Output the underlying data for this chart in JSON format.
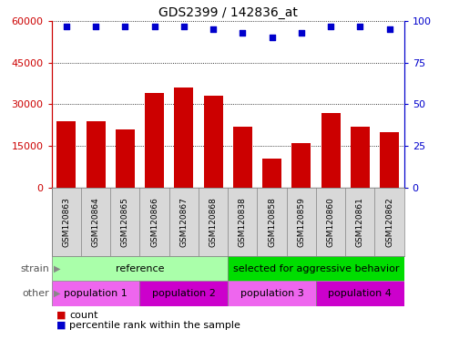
{
  "title": "GDS2399 / 142836_at",
  "samples": [
    "GSM120863",
    "GSM120864",
    "GSM120865",
    "GSM120866",
    "GSM120867",
    "GSM120868",
    "GSM120838",
    "GSM120858",
    "GSM120859",
    "GSM120860",
    "GSM120861",
    "GSM120862"
  ],
  "counts": [
    24000,
    24000,
    21000,
    34000,
    36000,
    33000,
    22000,
    10500,
    16000,
    27000,
    22000,
    20000
  ],
  "percentile_ranks": [
    97,
    97,
    97,
    97,
    97,
    95,
    93,
    90,
    93,
    97,
    97,
    95
  ],
  "ylim_left": [
    0,
    60000
  ],
  "ylim_right": [
    0,
    100
  ],
  "yticks_left": [
    0,
    15000,
    30000,
    45000,
    60000
  ],
  "yticks_right": [
    0,
    25,
    50,
    75,
    100
  ],
  "bar_color": "#cc0000",
  "dot_color": "#0000cc",
  "strain_groups": [
    {
      "label": "reference",
      "start": 0,
      "end": 6,
      "color": "#aaffaa"
    },
    {
      "label": "selected for aggressive behavior",
      "start": 6,
      "end": 12,
      "color": "#00dd00"
    }
  ],
  "other_groups": [
    {
      "label": "population 1",
      "start": 0,
      "end": 3,
      "color": "#ee66ee"
    },
    {
      "label": "population 2",
      "start": 3,
      "end": 6,
      "color": "#cc00cc"
    },
    {
      "label": "population 3",
      "start": 6,
      "end": 9,
      "color": "#ee66ee"
    },
    {
      "label": "population 4",
      "start": 9,
      "end": 12,
      "color": "#cc00cc"
    }
  ],
  "strain_label": "strain",
  "other_label": "other",
  "legend_count_label": "count",
  "legend_percentile_label": "percentile rank within the sample",
  "background_color": "#ffffff"
}
